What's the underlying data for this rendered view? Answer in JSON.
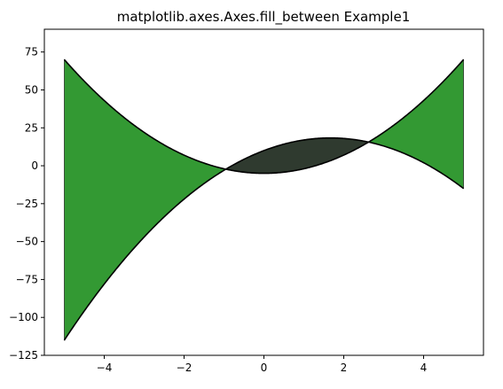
{
  "chart_data": {
    "type": "area",
    "title": "matplotlib.axes.Axes.fill_between Example1",
    "xlabel": "",
    "ylabel": "",
    "xlim": [
      -5.5,
      5.5
    ],
    "ylim": [
      -125,
      90
    ],
    "x_ticks": [
      -4,
      -2,
      0,
      2,
      4
    ],
    "y_ticks": [
      75,
      50,
      25,
      0,
      -25,
      -50,
      -75,
      -100,
      -125
    ],
    "grid": false,
    "series": [
      {
        "formula": "y = 3x^2 - 5",
        "x": [
          -5,
          -4,
          -3,
          -2,
          -1,
          0,
          1,
          2,
          3,
          4,
          5
        ],
        "values": [
          70,
          43,
          22,
          7,
          -2,
          -5,
          -2,
          7,
          22,
          43,
          70
        ],
        "color": "#000000"
      },
      {
        "formula": "y = -3x^2 + 10x + 10",
        "x": [
          -5,
          -4,
          -3,
          -2,
          -1,
          0,
          1,
          2,
          3,
          4,
          5
        ],
        "values": [
          -115,
          -78,
          -47,
          -22,
          -3,
          10,
          17,
          18,
          13,
          2,
          -15
        ],
        "color": "#000000"
      }
    ],
    "fills": [
      {
        "where": "upper curve above the other",
        "color": "#339933"
      },
      {
        "where": "lower curve above the other",
        "color": "#2f3a2f"
      }
    ]
  }
}
